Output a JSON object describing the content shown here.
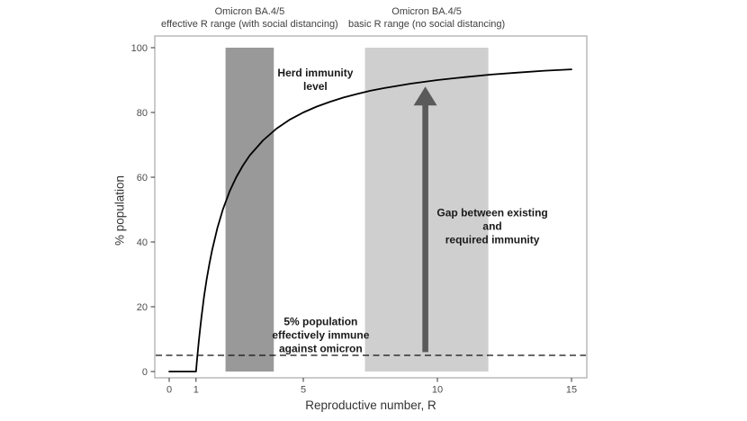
{
  "chart_data": {
    "type": "line",
    "title": "",
    "xlabel": "Reproductive number, R",
    "ylabel": "% population",
    "xlim": [
      0,
      15
    ],
    "ylim": [
      0,
      100
    ],
    "x_ticks": [
      0,
      1,
      5,
      10,
      15
    ],
    "y_ticks": [
      0,
      20,
      40,
      60,
      80,
      100
    ],
    "grid": false,
    "legend": "none",
    "curve": {
      "name": "herd-immunity-threshold",
      "formula": "100*(1-1/R) for R>=1, else 0",
      "x": [
        0,
        1,
        1.02,
        1.05,
        1.1,
        1.15,
        1.2,
        1.3,
        1.4,
        1.5,
        1.6,
        1.8,
        2,
        2.25,
        2.5,
        2.75,
        3,
        3.5,
        4,
        4.5,
        5,
        5.5,
        6,
        6.5,
        7,
        7.5,
        8,
        9,
        10,
        11,
        12,
        13,
        14,
        15
      ],
      "y": [
        0,
        0,
        2,
        4.8,
        9.1,
        13,
        16.7,
        23.1,
        28.6,
        33.3,
        37.5,
        44.4,
        50,
        55.6,
        60,
        63.6,
        66.7,
        71.4,
        75,
        77.8,
        80,
        81.8,
        83.3,
        84.6,
        85.7,
        86.7,
        87.5,
        88.9,
        90,
        90.9,
        91.7,
        92.3,
        92.9,
        93.3
      ]
    },
    "bands": [
      {
        "id": "effective",
        "label_line1": "Omicron BA.4/5",
        "label_line2": "effective R range (with social distancing)",
        "x_min": 2.1,
        "x_max": 3.9,
        "y_min": 0,
        "y_max": 100,
        "color": "#999999"
      },
      {
        "id": "basic",
        "label_line1": "Omicron BA.4/5",
        "label_line2": "basic R range (no social distancing)",
        "x_min": 7.3,
        "x_max": 11.9,
        "y_min": 0,
        "y_max": 100,
        "color": "#cfcfcf"
      }
    ],
    "dashed_line": {
      "y": 5
    },
    "arrow": {
      "x": 9.55,
      "y_from": 6,
      "y_to": 88,
      "color": "#5a5a5a"
    },
    "annotations": [
      {
        "id": "herd",
        "text": "Herd immunity\nlevel",
        "x": 5.45,
        "y": 90
      },
      {
        "id": "gap",
        "text": "Gap between existing\nand\nrequired immunity",
        "x": 12.05,
        "y": 44.7
      },
      {
        "id": "immune",
        "text": "5% population\neffectively immune\nagainst omicron",
        "x": 5.65,
        "y": 11.1
      }
    ]
  },
  "colors": {
    "curve": "#000000",
    "dashed_line": "#111111",
    "panel_border": "#a8a8a8",
    "tick_mark": "#333333",
    "tick_label": "#4d4d4d",
    "axis_title": "#333333",
    "band_title": "#404040",
    "annotation": "#1a1a1a"
  }
}
